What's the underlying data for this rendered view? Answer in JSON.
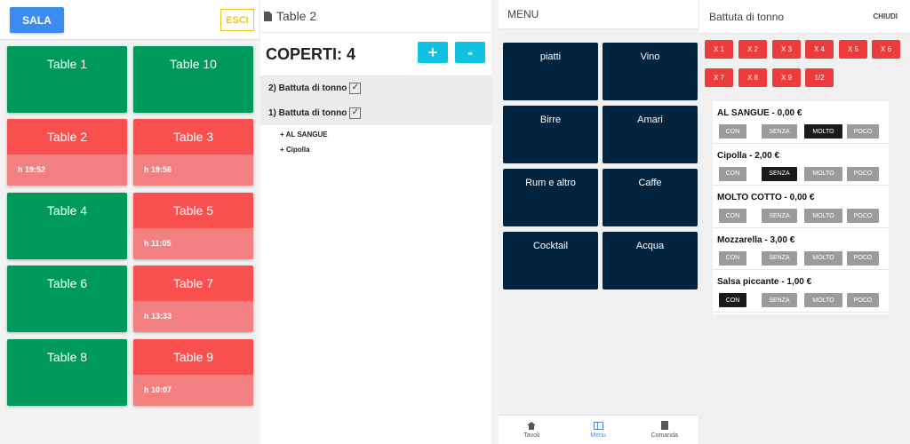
{
  "sala": {
    "sala_label": "SALA",
    "esci_label": "ESCI",
    "tables": [
      {
        "name": "Table 1",
        "time": "",
        "status": "free"
      },
      {
        "name": "Table 10",
        "time": "",
        "status": "free"
      },
      {
        "name": "Table 2",
        "time": "h 19:52",
        "status": "busy"
      },
      {
        "name": "Table 3",
        "time": "h 19:56",
        "status": "busy"
      },
      {
        "name": "Table 4",
        "time": "",
        "status": "free"
      },
      {
        "name": "Table 5",
        "time": "h 11:05",
        "status": "busy"
      },
      {
        "name": "Table 6",
        "time": "",
        "status": "free"
      },
      {
        "name": "Table 7",
        "time": "h 13:33",
        "status": "busy"
      },
      {
        "name": "Table 8",
        "time": "",
        "status": "free"
      },
      {
        "name": "Table 9",
        "time": "h 10:07",
        "status": "busy"
      }
    ]
  },
  "table_detail": {
    "title": "Table 2",
    "coperti_label": "COPERTI: 4",
    "plus_label": "+",
    "minus_label": "-",
    "orders": [
      {
        "label": "2) Battuta di tonno",
        "modifiers": []
      },
      {
        "label": "1) Battuta di tonno",
        "modifiers": [
          "+ AL SANGUE",
          "+ Cipolla"
        ]
      }
    ]
  },
  "menu": {
    "title": "MENU",
    "categories": [
      "piatti",
      "Vino",
      "Birre",
      "Amari",
      "Rum e altro",
      "Caffe",
      "Cocktail",
      "Acqua"
    ],
    "nav": {
      "tavoli": "Tavoli",
      "menu": "Menu",
      "comanda": "Comanda"
    }
  },
  "item_detail": {
    "title": "Battuta di tonno",
    "close_label": "CHIUDI",
    "multipliers": [
      "X 1",
      "X 2",
      "X 3",
      "X 4",
      "X 5",
      "X 6",
      "X 7",
      "X 8",
      "X 9",
      "1/2"
    ],
    "modifiers": [
      {
        "name": "AL SANGUE - 0,00 €",
        "selected": "MOLTO"
      },
      {
        "name": "Cipolla - 2,00 €",
        "selected": "SENZA"
      },
      {
        "name": "MOLTO COTTO - 0,00 €",
        "selected": ""
      },
      {
        "name": "Mozzarella - 3,00 €",
        "selected": ""
      },
      {
        "name": "Salsa piccante - 1,00 €",
        "selected": "CON"
      }
    ],
    "options": [
      "CON",
      "SENZA",
      "MOLTO",
      "POCO"
    ]
  },
  "colors": {
    "free": "#00995c",
    "busy_header": "#fa4f4f",
    "busy_body": "#f28080",
    "menu_tile": "#03243f",
    "accent": "#3b8bf3",
    "cyan": "#11c1e0",
    "multiplier": "#ed3b3b"
  }
}
